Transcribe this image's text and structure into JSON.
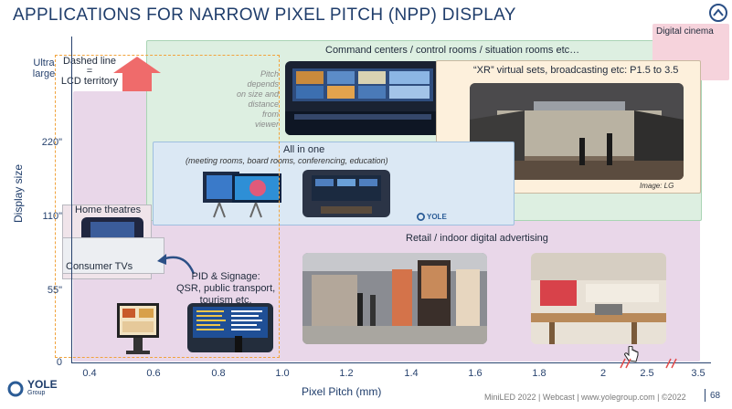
{
  "title": "APPLICATIONS FOR NARROW PIXEL PITCH (NPP) DISPLAY",
  "axes": {
    "y_label": "Display size",
    "x_label": "Pixel Pitch (mm)",
    "y_ticks": [
      "Ultra\nlarge",
      "220\"",
      "110\"",
      "55\"",
      "0"
    ],
    "x_ticks": [
      "0.4",
      "0.6",
      "0.8",
      "1.0",
      "1.2",
      "1.4",
      "1.6",
      "1.8",
      "2",
      "2.5",
      "3.5"
    ]
  },
  "annotations": {
    "dashed_line_note": "Dashed line\n=\nLCD territory",
    "pitch_note": "Pitch\ndepends\non size and\ndistance\nfrom\nviewer"
  },
  "regions": {
    "command_centers": "Command centers / control rooms / situation rooms etc…",
    "xr_sets": "“XR” virtual sets, broadcasting etc: P1.5 to 3.5",
    "xr_credit": "Image: LG",
    "all_in_one": "All in one",
    "all_in_one_sub": "(meeting rooms, board rooms, conferencing, education)",
    "digital_cinema": "Digital cinema",
    "home_theatres": "Home theatres",
    "consumer_tvs": "Consumer TVs",
    "pid_signage": "PID & Signage:\nQSR, public transport,\ntourism etc.",
    "retail": "Retail / indoor digital advertising",
    "yole_small": "YOLE"
  },
  "footer": {
    "logo": "YOLE",
    "logo_sub": "Group",
    "text": "MiniLED 2022 | Webcast | www.yolegroup.com | ©2022",
    "page": "68"
  },
  "colors": {
    "title": "#1f3d6b",
    "pink_region": "#e9d7e9",
    "green_region": "#ddefe1",
    "blue_region": "#dbe8f4",
    "peach_region": "#fdf0dc",
    "lcd_dash": "#f1a33c"
  }
}
